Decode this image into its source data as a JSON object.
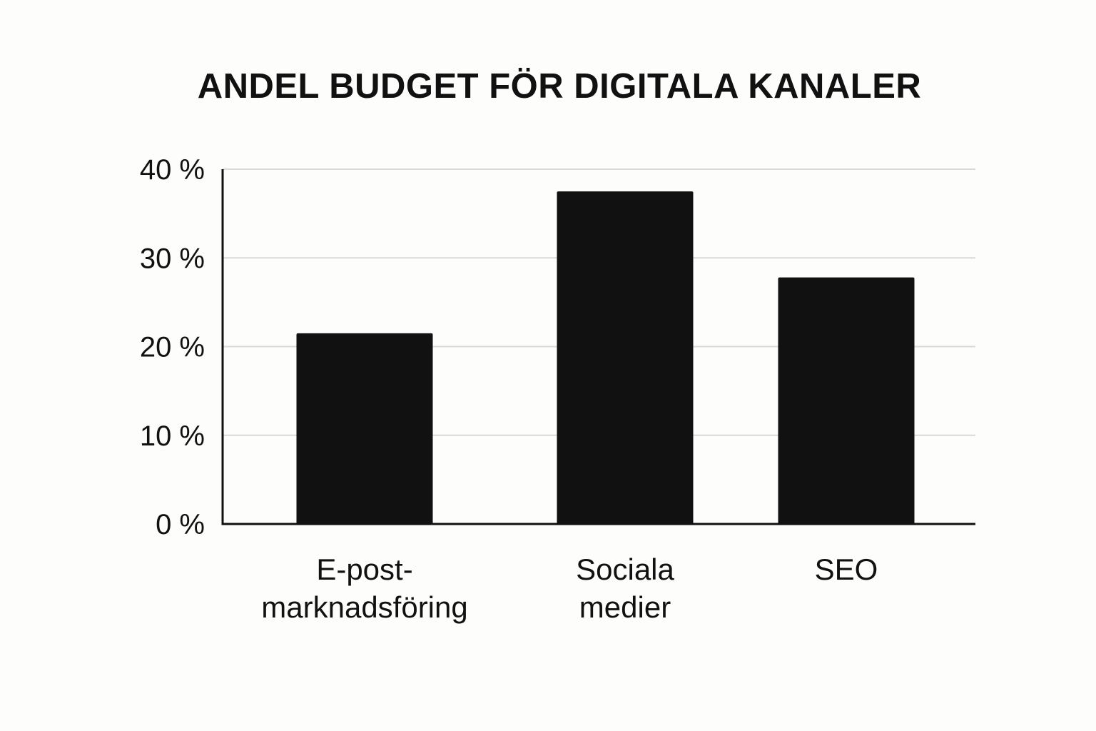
{
  "chart_data": {
    "type": "bar",
    "title": "ANDEL BUDGET FÖR DIGITALA KANALER",
    "xlabel": "",
    "ylabel": "",
    "categories": [
      [
        "E-post-",
        "marknadsföring"
      ],
      [
        "Sociala",
        "medier"
      ],
      [
        "SEO"
      ]
    ],
    "values": [
      21.5,
      37.5,
      27.8
    ],
    "ylim": [
      0,
      40
    ],
    "yticks": [
      0,
      10,
      20,
      30,
      40
    ],
    "ytick_labels": [
      "0 %",
      "10 %",
      "20 %",
      "30 %",
      "40 %"
    ],
    "grid": true,
    "legend": "none",
    "colors": {
      "bar": "#111111",
      "grid": "#d9d9d9",
      "axis": "#111111",
      "text": "#111111",
      "background": "#fdfdfb"
    }
  }
}
